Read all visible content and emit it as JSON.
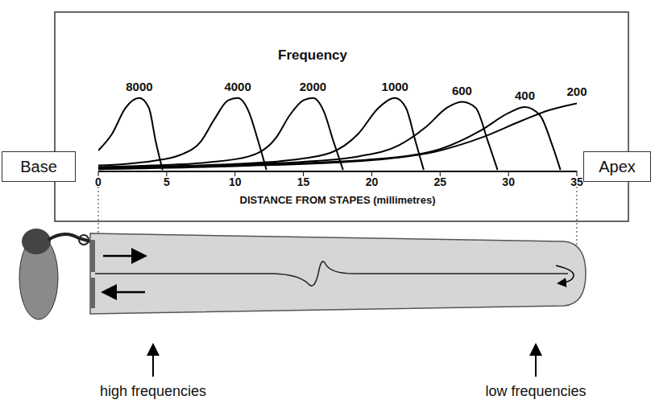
{
  "chart_data": {
    "type": "line",
    "title": "Frequency",
    "x_label": "DISTANCE FROM STAPES (millimetres)",
    "xlim": [
      0,
      35
    ],
    "xticks": [
      0,
      5,
      10,
      15,
      20,
      25,
      30,
      35
    ],
    "ylim": [
      0,
      1
    ],
    "tick_labels": "x",
    "grid": false,
    "color": "#000000",
    "annotations": [
      "Base",
      "Apex"
    ],
    "series": [
      {
        "name": "8000",
        "x": [
          0,
          1,
          2,
          3,
          3.7,
          4.2,
          4.7
        ],
        "values": [
          0.28,
          0.5,
          0.85,
          0.98,
          0.85,
          0.4,
          0.02
        ]
      },
      {
        "name": "4000",
        "x": [
          0,
          2,
          4,
          6,
          7.5,
          8.5,
          9.5,
          10.2,
          11,
          11.7,
          12.3
        ],
        "values": [
          0.08,
          0.1,
          0.14,
          0.22,
          0.4,
          0.7,
          0.95,
          0.98,
          0.8,
          0.4,
          0.02
        ]
      },
      {
        "name": "2000",
        "x": [
          0,
          4,
          8,
          11,
          13,
          14,
          15,
          15.7,
          16.5,
          17.2,
          17.9
        ],
        "values": [
          0.06,
          0.08,
          0.12,
          0.2,
          0.45,
          0.75,
          0.95,
          0.98,
          0.8,
          0.4,
          0.02
        ]
      },
      {
        "name": "1000",
        "x": [
          0,
          5,
          10,
          14,
          17,
          19,
          20.5,
          21.7,
          22.5,
          23.2,
          23.8
        ],
        "values": [
          0.05,
          0.07,
          0.1,
          0.15,
          0.25,
          0.5,
          0.85,
          0.98,
          0.85,
          0.4,
          0.02
        ]
      },
      {
        "name": "600",
        "x": [
          0,
          5,
          10,
          15,
          19,
          22,
          24,
          25.5,
          26.6,
          27.6,
          28.5,
          29.2
        ],
        "values": [
          0.04,
          0.06,
          0.09,
          0.13,
          0.2,
          0.35,
          0.6,
          0.85,
          0.93,
          0.85,
          0.4,
          0.02
        ]
      },
      {
        "name": "400",
        "x": [
          0,
          10,
          20,
          25,
          28,
          30,
          31.2,
          32.3,
          33.2,
          33.8
        ],
        "values": [
          0.03,
          0.08,
          0.16,
          0.3,
          0.55,
          0.78,
          0.86,
          0.75,
          0.35,
          0.02
        ]
      },
      {
        "name": "200",
        "x": [
          0,
          10,
          20,
          25,
          28,
          31,
          33,
          35
        ],
        "values": [
          0.03,
          0.07,
          0.15,
          0.28,
          0.45,
          0.68,
          0.82,
          0.91
        ]
      }
    ]
  },
  "diagram": {
    "left_label": "high frequencies",
    "right_label": "low frequencies"
  }
}
